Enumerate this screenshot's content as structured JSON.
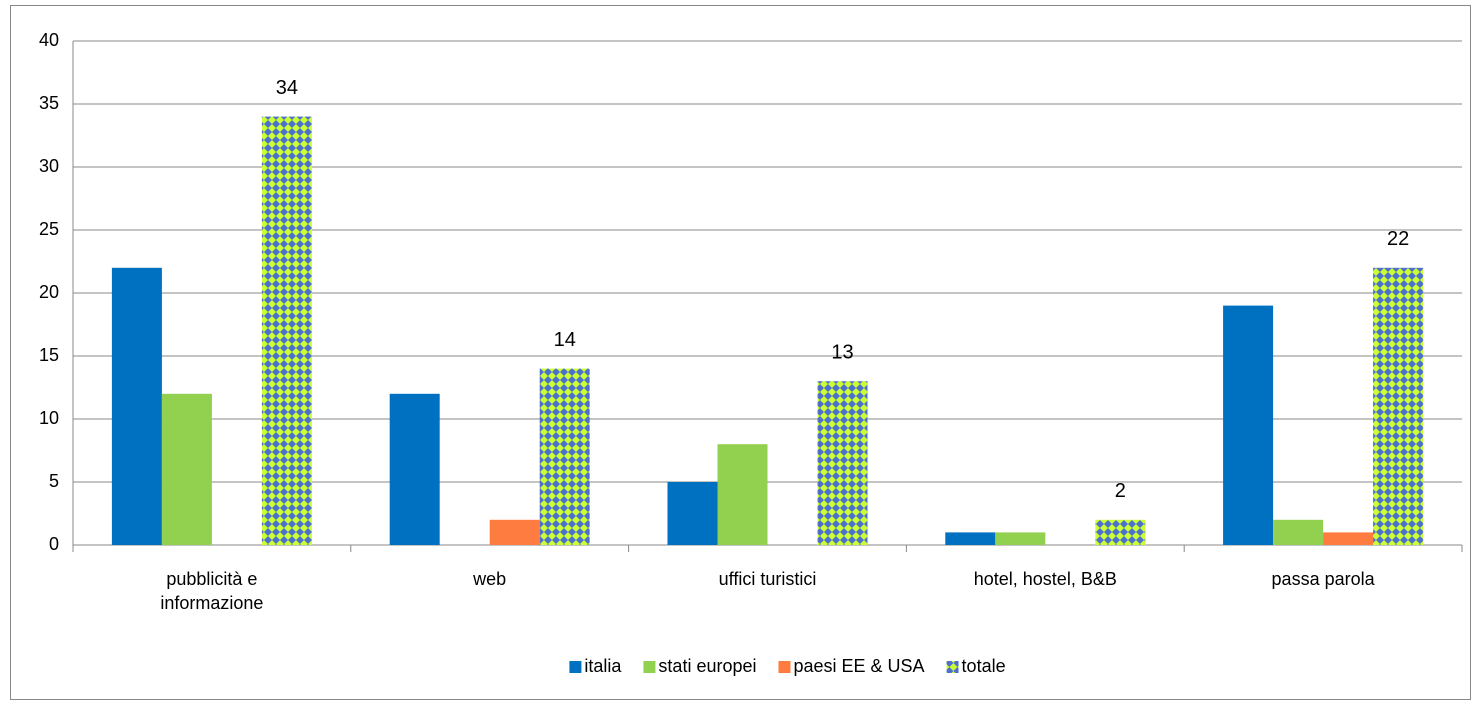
{
  "chart_data": {
    "type": "bar",
    "categories": [
      "pubblicità e informazione",
      "web",
      "uffici turistici",
      "hotel, hostel, B&B",
      "passa parola"
    ],
    "series": [
      {
        "name": "italia",
        "color": "#0070c0",
        "values": [
          22,
          12,
          5,
          1,
          19
        ]
      },
      {
        "name": "stati europei",
        "color": "#92d050",
        "values": [
          12,
          0,
          8,
          1,
          2
        ]
      },
      {
        "name": "paesi EE & USA",
        "color": "#ff7c40",
        "values": [
          0,
          2,
          0,
          0,
          1
        ]
      },
      {
        "name": "totale",
        "color": "#ccff33",
        "pattern_color": "#4f6fcf",
        "pattern": "checker",
        "data_labels": true,
        "values": [
          34,
          14,
          13,
          2,
          22
        ]
      }
    ],
    "ylim": [
      0,
      40
    ],
    "yticks": [
      0,
      5,
      10,
      15,
      20,
      25,
      30,
      35,
      40
    ],
    "grid": true,
    "legend": "bottom"
  }
}
